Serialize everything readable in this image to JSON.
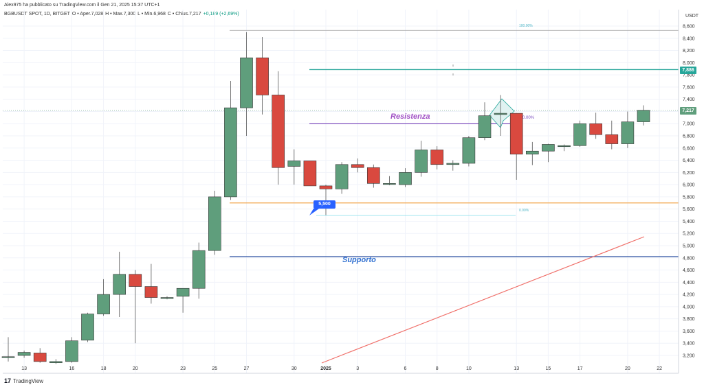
{
  "header": {
    "published": "Alex975 ha pubblicato su TradingView.com il Gen 21, 2025 15:37 UTC+1"
  },
  "symbol_bar": {
    "symbol": "BGBUSDT SPOT, 1D, BITGET",
    "open": "O • Aper.7,028",
    "high": "H • Max.7,300",
    "low": "L • Min.6,968",
    "close": "C • Chius.7,217",
    "change": "+0,189 (+2,69%)"
  },
  "branding": {
    "logo_text": "TradingView"
  },
  "price_axis": {
    "currency": "USDT",
    "tick_labels": [
      "8,600",
      "8,400",
      "8,200",
      "8,000",
      "7,800",
      "7,600",
      "7,400",
      "7,200",
      "7,000",
      "6,800",
      "6,600",
      "6,400",
      "6,200",
      "6,000",
      "5,800",
      "5,600",
      "5,400",
      "5,200",
      "5,000",
      "4,800",
      "4,600",
      "4,400",
      "4,200",
      "4,000",
      "3,800",
      "3,600",
      "3,400",
      "3,200"
    ],
    "tag_resistance_level": "7,886",
    "tag_last_price": "7,217"
  },
  "annotations": {
    "resistance_label": "Resistenza",
    "support_label": "Supporto",
    "low_callout": "5,500",
    "fib_top": "100.00%",
    "fib_bottom": "0.00%",
    "fib_mid": "0.00%"
  },
  "colors": {
    "up": "#5f9e7c",
    "down": "#d9493f",
    "resistance": "#7c4dbf",
    "support": "#2a4fa0",
    "orange_line": "#f2a54a",
    "teal_line": "#26a69a",
    "trendline": "#f0706a"
  },
  "chart_data": {
    "type": "candlestick",
    "x_tick_labels": [
      "13",
      "16",
      "18",
      "20",
      "23",
      "25",
      "27",
      "30",
      "2025",
      "3",
      "6",
      "8",
      "10",
      "13",
      "15",
      "17",
      "20",
      "22"
    ],
    "candles": [
      {
        "o": 3.18,
        "h": 3.5,
        "l": 3.1,
        "c": 3.18
      },
      {
        "o": 3.2,
        "h": 3.28,
        "l": 3.16,
        "c": 3.25
      },
      {
        "o": 3.24,
        "h": 3.32,
        "l": 3.08,
        "c": 3.1
      },
      {
        "o": 3.08,
        "h": 3.14,
        "l": 3.06,
        "c": 3.1
      },
      {
        "o": 3.1,
        "h": 3.5,
        "l": 3.08,
        "c": 3.44
      },
      {
        "o": 3.45,
        "h": 3.9,
        "l": 3.42,
        "c": 3.88
      },
      {
        "o": 3.88,
        "h": 4.45,
        "l": 3.85,
        "c": 4.2
      },
      {
        "o": 4.2,
        "h": 4.9,
        "l": 3.83,
        "c": 4.53
      },
      {
        "o": 4.53,
        "h": 4.6,
        "l": 3.4,
        "c": 4.33
      },
      {
        "o": 4.33,
        "h": 4.7,
        "l": 4.05,
        "c": 4.15
      },
      {
        "o": 4.15,
        "h": 4.17,
        "l": 4.12,
        "c": 4.15
      },
      {
        "o": 4.17,
        "h": 4.3,
        "l": 3.9,
        "c": 4.3
      },
      {
        "o": 4.3,
        "h": 5.05,
        "l": 4.13,
        "c": 4.92
      },
      {
        "o": 4.92,
        "h": 5.9,
        "l": 4.85,
        "c": 5.8
      },
      {
        "o": 5.8,
        "h": 7.7,
        "l": 5.75,
        "c": 7.26
      },
      {
        "o": 7.26,
        "h": 8.5,
        "l": 6.8,
        "c": 8.08
      },
      {
        "o": 8.08,
        "h": 8.42,
        "l": 7.15,
        "c": 7.47
      },
      {
        "o": 7.47,
        "h": 7.86,
        "l": 6.0,
        "c": 6.28
      },
      {
        "o": 6.3,
        "h": 6.58,
        "l": 6.0,
        "c": 6.39
      },
      {
        "o": 6.39,
        "h": 6.38,
        "l": 5.98,
        "c": 5.98
      },
      {
        "o": 5.98,
        "h": 6.0,
        "l": 5.5,
        "c": 5.93
      },
      {
        "o": 5.93,
        "h": 6.37,
        "l": 5.85,
        "c": 6.33
      },
      {
        "o": 6.33,
        "h": 6.43,
        "l": 6.2,
        "c": 6.28
      },
      {
        "o": 6.28,
        "h": 6.33,
        "l": 5.95,
        "c": 6.02
      },
      {
        "o": 6.02,
        "h": 6.14,
        "l": 5.99,
        "c": 6.02
      },
      {
        "o": 6.0,
        "h": 6.27,
        "l": 5.96,
        "c": 6.2
      },
      {
        "o": 6.2,
        "h": 6.72,
        "l": 6.13,
        "c": 6.57
      },
      {
        "o": 6.57,
        "h": 6.63,
        "l": 6.25,
        "c": 6.33
      },
      {
        "o": 6.33,
        "h": 6.4,
        "l": 6.23,
        "c": 6.35
      },
      {
        "o": 6.35,
        "h": 6.8,
        "l": 6.3,
        "c": 6.77
      },
      {
        "o": 6.77,
        "h": 7.35,
        "l": 6.73,
        "c": 7.13
      },
      {
        "o": 7.15,
        "h": 7.47,
        "l": 6.8,
        "c": 7.17
      },
      {
        "o": 7.17,
        "h": 7.17,
        "l": 6.08,
        "c": 6.5
      },
      {
        "o": 6.5,
        "h": 6.7,
        "l": 6.32,
        "c": 6.55
      },
      {
        "o": 6.55,
        "h": 6.67,
        "l": 6.37,
        "c": 6.66
      },
      {
        "o": 6.63,
        "h": 6.66,
        "l": 6.55,
        "c": 6.64
      },
      {
        "o": 6.64,
        "h": 7.05,
        "l": 6.62,
        "c": 7.0
      },
      {
        "o": 7.0,
        "h": 7.18,
        "l": 6.75,
        "c": 6.82
      },
      {
        "o": 6.82,
        "h": 7.05,
        "l": 6.58,
        "c": 6.67
      },
      {
        "o": 6.67,
        "h": 7.2,
        "l": 6.6,
        "c": 7.03
      },
      {
        "o": 7.03,
        "h": 7.3,
        "l": 6.97,
        "c": 7.22
      }
    ],
    "horizontal_levels": [
      {
        "name": "resistance",
        "price": 7.0
      },
      {
        "name": "support",
        "price": 4.82
      },
      {
        "name": "orange",
        "price": 5.7
      },
      {
        "name": "teal",
        "price": 7.886
      }
    ]
  }
}
